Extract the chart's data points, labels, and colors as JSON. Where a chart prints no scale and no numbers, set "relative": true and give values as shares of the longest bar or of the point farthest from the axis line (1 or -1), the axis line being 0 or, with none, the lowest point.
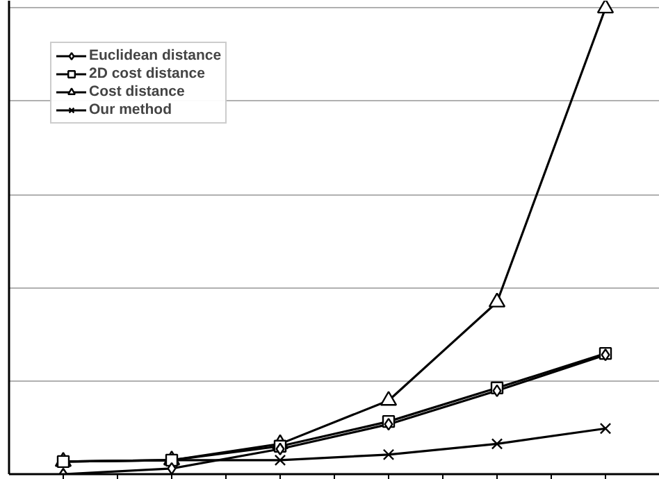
{
  "chart_data": {
    "type": "line",
    "relative": true,
    "categories": [
      null,
      null,
      null,
      null,
      null,
      null
    ],
    "series": [
      {
        "name": "Euclidean distance",
        "color": "#000000",
        "marker": "diamond",
        "values": [
          0,
          0.012,
          0.054,
          0.107,
          0.179,
          0.256
        ]
      },
      {
        "name": "2D cost distance",
        "color": "#000000",
        "marker": "square",
        "values": [
          0.027,
          0.03,
          0.06,
          0.113,
          0.185,
          0.259
        ]
      },
      {
        "name": "Cost distance",
        "color": "#000000",
        "marker": "triangle",
        "values": [
          0.027,
          0.03,
          0.065,
          0.158,
          0.369,
          1
        ]
      },
      {
        "name": "Our method",
        "color": "#000000",
        "marker": "cross",
        "values": [
          0.027,
          0.03,
          0.03,
          0.042,
          0.065,
          0.098
        ]
      }
    ],
    "grid": "y",
    "legend": "top left",
    "line_style": "solid"
  }
}
